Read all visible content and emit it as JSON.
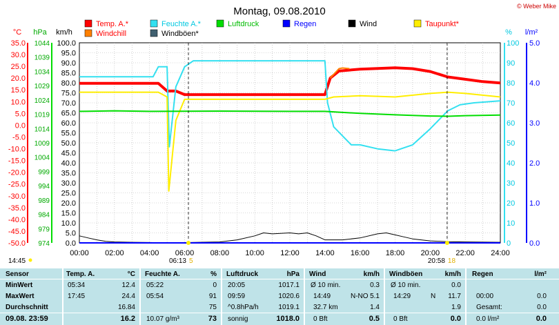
{
  "header": {
    "title": "Montag, 09.08.2010",
    "copyright": "© Weber Mike"
  },
  "legend": [
    {
      "label": "Temp. A.*",
      "color": "#ff0000"
    },
    {
      "label": "Feuchte A.*",
      "color": "#33e0f0"
    },
    {
      "label": "Luftdruck",
      "color": "#00dd00"
    },
    {
      "label": "Regen",
      "color": "#0000ff"
    },
    {
      "label": "Wind",
      "color": "#000000"
    },
    {
      "label": "Taupunkt*",
      "color": "#ffee00"
    },
    {
      "label": "Windchill",
      "color": "#ff8000"
    },
    {
      "label": "Windböen*",
      "color": "#406070"
    }
  ],
  "axes": {
    "temp_unit": "°C",
    "press_unit": "hPa",
    "wind_unit": "km/h",
    "hum_unit": "%",
    "rain_unit": "l/m²",
    "temp_ticks": [
      "35.0",
      "30.0",
      "25.0",
      "20.0",
      "15.0",
      "10.0",
      "5.0",
      "0.0",
      "-5.0",
      "-10.0",
      "-15.0",
      "-20.0",
      "-25.0",
      "-30.0",
      "-35.0",
      "-40.0",
      "-45.0",
      "-50.0"
    ],
    "press_ticks": [
      "1044",
      "1039",
      "1034",
      "1029",
      "1024",
      "1019",
      "1014",
      "1009",
      "1004",
      "999",
      "994",
      "989",
      "984",
      "979",
      "974"
    ],
    "wind_ticks": [
      "100.0",
      "95.0",
      "90.0",
      "85.0",
      "80.0",
      "75.0",
      "70.0",
      "65.0",
      "60.0",
      "55.0",
      "50.0",
      "45.0",
      "40.0",
      "35.0",
      "30.0",
      "25.0",
      "20.0",
      "15.0",
      "10.0",
      "5.0",
      "0.0"
    ],
    "hum_ticks": [
      "100",
      "90",
      "80",
      "70",
      "60",
      "50",
      "40",
      "30",
      "20",
      "10",
      "0"
    ],
    "rain_ticks": [
      "5.0",
      "4.0",
      "3.0",
      "2.0",
      "1.0",
      "0.0"
    ],
    "time_ticks": [
      "00:00",
      "02:00",
      "04:00",
      "06:00",
      "08:00",
      "10:00",
      "12:00",
      "14:00",
      "16:00",
      "18:00",
      "20:00",
      "22:00",
      "24:00"
    ],
    "sunrise": "06:13",
    "sunrise_icon": "5",
    "sunset": "20:58",
    "sunset_icon": "18",
    "last_time": "14:45"
  },
  "chart_data": {
    "type": "line",
    "x_unit": "hours",
    "series": [
      {
        "name": "Temp. A.*",
        "color": "#ff0000",
        "axis": "temp",
        "points": [
          [
            0,
            17.8
          ],
          [
            4.5,
            17.8
          ],
          [
            5.0,
            14.5
          ],
          [
            5.5,
            14.5
          ],
          [
            6,
            13
          ],
          [
            14,
            13
          ],
          [
            14.3,
            20
          ],
          [
            14.8,
            23
          ],
          [
            16,
            23.8
          ],
          [
            18,
            24.4
          ],
          [
            19,
            24
          ],
          [
            20,
            22.8
          ],
          [
            21,
            20.5
          ],
          [
            22,
            19.5
          ],
          [
            23,
            18.5
          ],
          [
            24,
            17.9
          ]
        ]
      },
      {
        "name": "Feuchte A.*",
        "color": "#33e0f0",
        "axis": "hum",
        "points": [
          [
            0,
            83
          ],
          [
            4.2,
            83
          ],
          [
            4.5,
            88
          ],
          [
            5,
            88
          ],
          [
            5.13,
            48
          ],
          [
            5.5,
            78
          ],
          [
            6,
            88
          ],
          [
            6.5,
            91
          ],
          [
            14,
            91
          ],
          [
            14.15,
            70
          ],
          [
            14.5,
            58
          ],
          [
            15.5,
            49
          ],
          [
            16,
            49
          ],
          [
            17,
            47
          ],
          [
            18,
            46
          ],
          [
            19,
            49
          ],
          [
            20,
            57
          ],
          [
            21,
            66
          ],
          [
            21.7,
            69
          ],
          [
            22.5,
            70
          ],
          [
            24,
            71
          ]
        ]
      },
      {
        "name": "Taupunkt*",
        "color": "#ffee00",
        "axis": "temp",
        "points": [
          [
            0,
            14
          ],
          [
            4.5,
            14
          ],
          [
            5.0,
            12
          ],
          [
            5.1,
            -28
          ],
          [
            5.5,
            2
          ],
          [
            6,
            11
          ],
          [
            14,
            11
          ],
          [
            14.5,
            12
          ],
          [
            16,
            12.5
          ],
          [
            18,
            12
          ],
          [
            20,
            13.5
          ],
          [
            21,
            14
          ],
          [
            22,
            13.5
          ],
          [
            24,
            12
          ]
        ]
      },
      {
        "name": "Luftdruck",
        "color": "#00dd00",
        "axis": "press",
        "points": [
          [
            0,
            1020
          ],
          [
            2,
            1020.2
          ],
          [
            4,
            1020
          ],
          [
            8,
            1020.1
          ],
          [
            12,
            1020
          ],
          [
            14,
            1020
          ],
          [
            16,
            1019.3
          ],
          [
            18,
            1018.8
          ],
          [
            20,
            1018.4
          ],
          [
            21,
            1018.3
          ],
          [
            22,
            1018.5
          ],
          [
            24,
            1018.7
          ]
        ]
      },
      {
        "name": "Windchill",
        "color": "#ff8000",
        "axis": "temp",
        "points": [
          [
            14.3,
            20
          ],
          [
            14.8,
            24
          ],
          [
            15,
            24.3
          ],
          [
            15.4,
            24
          ]
        ]
      },
      {
        "name": "Wind",
        "color": "#000000",
        "axis": "wind",
        "points": [
          [
            0,
            3.5
          ],
          [
            0.5,
            2.5
          ],
          [
            1,
            1.5
          ],
          [
            1.5,
            0.8
          ],
          [
            2,
            0.5
          ],
          [
            3,
            0.3
          ],
          [
            4,
            0.2
          ],
          [
            5,
            0
          ],
          [
            8,
            0.5
          ],
          [
            9,
            1.5
          ],
          [
            10,
            3.5
          ],
          [
            10.5,
            5
          ],
          [
            11,
            4.5
          ],
          [
            12,
            5
          ],
          [
            12.5,
            4.5
          ],
          [
            13,
            5
          ],
          [
            13.5,
            3.5
          ],
          [
            14,
            1.5
          ],
          [
            15,
            1.5
          ],
          [
            16,
            2.5
          ],
          [
            17,
            4.5
          ],
          [
            17.5,
            5
          ],
          [
            18,
            4
          ],
          [
            18.5,
            3
          ],
          [
            19,
            2
          ],
          [
            20,
            1
          ],
          [
            21,
            0.6
          ],
          [
            22,
            0.5
          ],
          [
            24,
            0.3
          ]
        ]
      },
      {
        "name": "Regen",
        "color": "#0000ff",
        "axis": "rain",
        "points": [
          [
            0,
            0
          ],
          [
            24,
            0
          ]
        ]
      }
    ]
  },
  "table": {
    "row_labels": [
      "Sensor",
      "MinWert",
      "MaxWert",
      "Durchschnitt",
      "09.08.  23:59"
    ],
    "temp": {
      "head": "Temp. A.",
      "unit": "°C",
      "min_time": "05:34",
      "min": "12.4",
      "max_time": "17:45",
      "max": "24.4",
      "avg": "16.84",
      "cur": "16.2"
    },
    "hum": {
      "head": "Feuchte A.",
      "unit": "%",
      "min_time": "05:22",
      "min": "0",
      "max_time": "05:54",
      "max": "91",
      "avg": "75",
      "cur_extra": "10.07 g/m³",
      "cur": "73"
    },
    "press": {
      "head": "Luftdruck",
      "unit": "hPa",
      "min_time": "20:05",
      "min": "1017.1",
      "max_time": "09:59",
      "max": "1020.6",
      "avg_label": "^0.8hPa/h",
      "avg": "1019.1",
      "cur_label": "sonnig",
      "cur": "1018.0"
    },
    "wind": {
      "head": "Wind",
      "unit": "km/h",
      "r1_label": "Ø 10 min.",
      "r1": "0.3",
      "r2_time": "14:49",
      "r2_dir": "N-NO",
      "r2": "5.1",
      "r3_label": "32.7 km",
      "r3": "1.4",
      "r4_label": "0 Bft",
      "r4": "0.5"
    },
    "gust": {
      "head": "Windböen",
      "unit": "km/h",
      "r1_label": "Ø 10 min.",
      "r1": "0.0",
      "r2_time": "14:29",
      "r2_dir": "N",
      "r2": "11.7",
      "r3": "1.9",
      "r4_label": "0 Bft",
      "r4": "0.0"
    },
    "rain": {
      "head": "Regen",
      "unit": "l/m²",
      "r2_time": "00:00",
      "r2": "0.0",
      "r3_label": "Gesamt:",
      "r3": "0.0",
      "r4_label": "0.0 l/m²",
      "r4": "0.0"
    }
  }
}
